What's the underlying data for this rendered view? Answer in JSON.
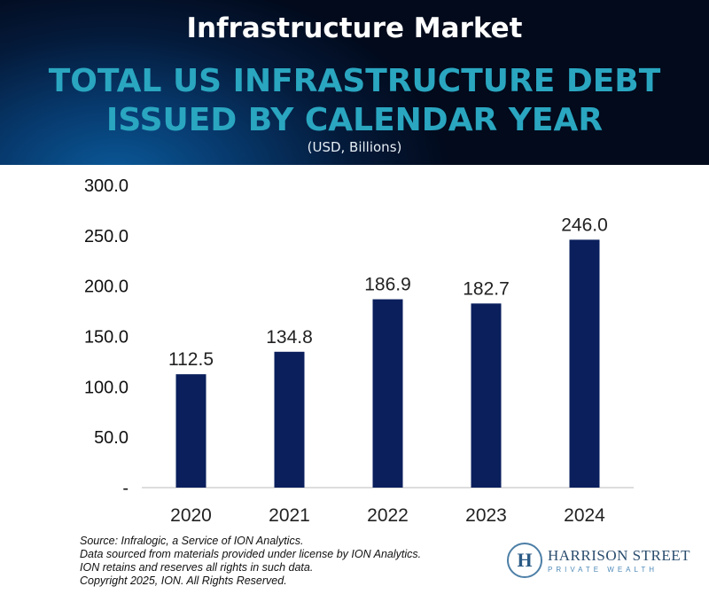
{
  "header": {
    "title": "Infrastructure Market",
    "subtitle_line1": "TOTAL US INFRASTRUCTURE DEBT",
    "subtitle_line2": "ISSUED BY CALENDAR YEAR",
    "units": "(USD, Billions)"
  },
  "chart_data": {
    "type": "bar",
    "title": "TOTAL US INFRASTRUCTURE DEBT ISSUED BY CALENDAR YEAR",
    "ylabel": "USD, Billions",
    "xlabel": "",
    "categories": [
      "2020",
      "2021",
      "2022",
      "2023",
      "2024"
    ],
    "values": [
      112.5,
      134.8,
      186.9,
      182.7,
      246.0
    ],
    "data_labels": [
      "112.5",
      "134.8",
      "186.9",
      "182.7",
      "246.0"
    ],
    "ylim": [
      0,
      300
    ],
    "yticks": [
      0,
      50,
      100,
      150,
      200,
      250,
      300
    ],
    "ytick_labels": [
      "-",
      "50.0",
      "100.0",
      "150.0",
      "200.0",
      "250.0",
      "300.0"
    ],
    "bar_color": "#0a1f5c",
    "grid": false
  },
  "source": [
    "Source: Infralogic, a Service of ION Analytics.",
    "Data sourced from materials provided under license by ION Analytics.",
    "ION retains and reserves all rights in such data.",
    "Copyright 2025, ION. All Rights Reserved."
  ],
  "logo": {
    "name": "HARRISON STREET",
    "tagline": "PRIVATE WEALTH",
    "mark": "H"
  }
}
